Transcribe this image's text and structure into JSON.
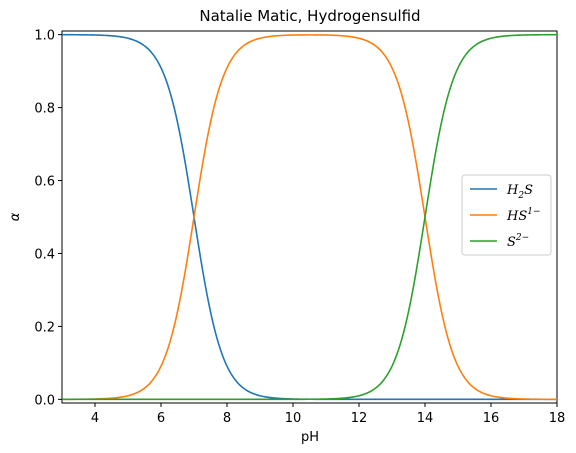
{
  "chart_data": {
    "type": "line",
    "title": "Natalie Matic, Hydrogensulfid",
    "xlabel": "pH",
    "ylabel": "α",
    "xlim": [
      3,
      18
    ],
    "ylim": [
      -0.01,
      1.01
    ],
    "xticks": [
      4,
      6,
      8,
      10,
      12,
      14,
      16,
      18
    ],
    "yticks": [
      0.0,
      0.2,
      0.4,
      0.6,
      0.8,
      1.0
    ],
    "xtick_labels": [
      "4",
      "6",
      "8",
      "10",
      "12",
      "14",
      "16",
      "18"
    ],
    "ytick_labels": [
      "0.0",
      "0.2",
      "0.4",
      "0.6",
      "0.8",
      "1.0"
    ],
    "grid": false,
    "legend_position": "center-right",
    "pKa": [
      7.0,
      14.0
    ],
    "series": [
      {
        "name": "H2S",
        "legend": {
          "base": "H",
          "sub": "2",
          "base2": "S",
          "sup": ""
        },
        "color": "#1f77b4",
        "x": [
          3,
          4,
          5,
          5.5,
          6,
          6.5,
          7,
          7.5,
          8,
          8.5,
          9,
          10,
          12,
          14,
          16,
          18
        ],
        "y": [
          1.0,
          0.999,
          0.99,
          0.969,
          0.909,
          0.76,
          0.5,
          0.24,
          0.091,
          0.031,
          0.01,
          0.001,
          0.0,
          0.0,
          0.0,
          0.0
        ]
      },
      {
        "name": "HS1-",
        "legend": {
          "base": "HS",
          "sub": "",
          "base2": "",
          "sup": "1−"
        },
        "color": "#ff7f0e",
        "x": [
          3,
          4,
          5,
          5.5,
          6,
          6.5,
          7,
          7.5,
          8,
          8.5,
          9,
          10,
          11,
          12,
          12.5,
          13,
          13.5,
          14,
          14.5,
          15,
          15.5,
          16,
          17,
          18
        ],
        "y": [
          0.0,
          0.001,
          0.01,
          0.031,
          0.091,
          0.24,
          0.5,
          0.76,
          0.909,
          0.969,
          0.99,
          0.999,
          0.999,
          0.99,
          0.969,
          0.909,
          0.76,
          0.5,
          0.24,
          0.091,
          0.031,
          0.01,
          0.001,
          0.0
        ]
      },
      {
        "name": "S2-",
        "legend": {
          "base": "S",
          "sub": "",
          "base2": "",
          "sup": "2−"
        },
        "color": "#2ca02c",
        "x": [
          3,
          8,
          10,
          11,
          12,
          12.5,
          13,
          13.5,
          14,
          14.5,
          15,
          15.5,
          16,
          17,
          18
        ],
        "y": [
          0.0,
          0.0,
          0.0,
          0.001,
          0.01,
          0.031,
          0.091,
          0.24,
          0.5,
          0.76,
          0.909,
          0.969,
          0.99,
          0.999,
          1.0
        ]
      }
    ]
  }
}
